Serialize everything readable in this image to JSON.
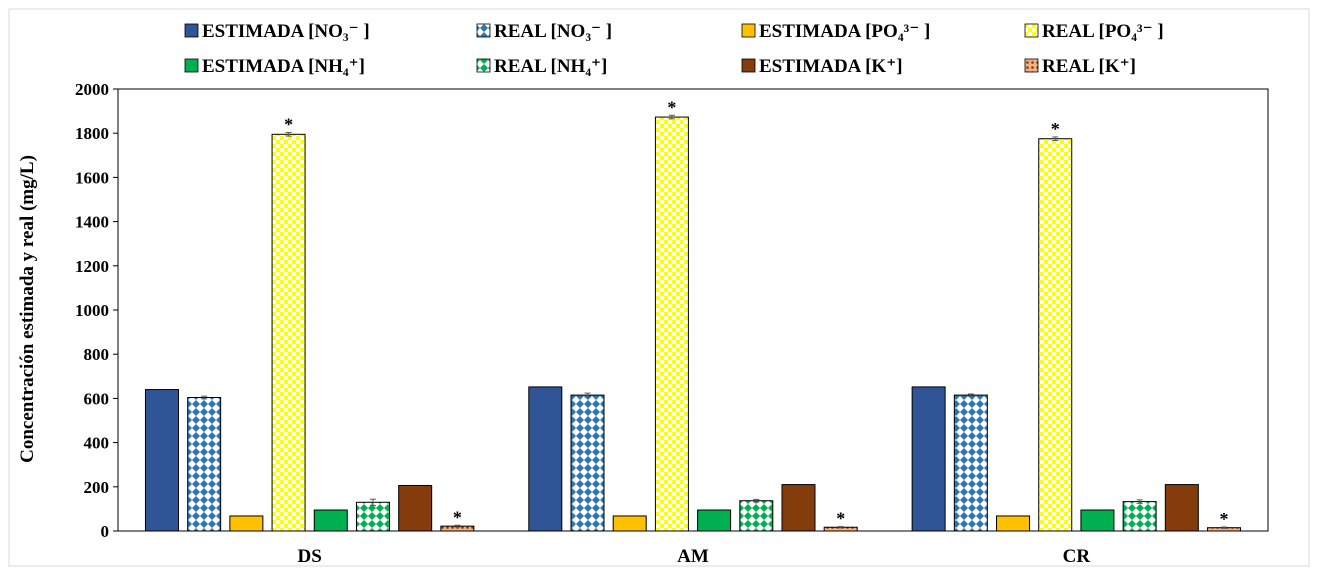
{
  "chart_data": {
    "type": "bar",
    "ylabel": "Concentración estimada y real (mg/L)",
    "ylim": [
      0,
      2000
    ],
    "yticks": [
      0,
      200,
      400,
      600,
      800,
      1000,
      1200,
      1400,
      1600,
      1800,
      2000
    ],
    "grid": false,
    "legend_position": "top",
    "categories": [
      "DS",
      "AM",
      "CR"
    ],
    "series": [
      {
        "name": "ESTIMADA  [NO₃⁻ ]",
        "values": [
          640,
          652,
          652
        ],
        "errors": [
          0,
          0,
          0
        ],
        "color": "#2f5597",
        "pattern": "solid",
        "stars": [
          false,
          false,
          false
        ]
      },
      {
        "name": "REAL [NO₃⁻ ]",
        "values": [
          604,
          615,
          615
        ],
        "errors": [
          6,
          9,
          5
        ],
        "color": "#2e75b6",
        "pattern": "diamond",
        "stars": [
          false,
          false,
          false
        ]
      },
      {
        "name": "ESTIMADA [PO₄³⁻ ]",
        "values": [
          68,
          68,
          68
        ],
        "errors": [
          0,
          0,
          0
        ],
        "color": "#ffc000",
        "pattern": "solid",
        "stars": [
          false,
          false,
          false
        ]
      },
      {
        "name": "REAL [PO₄³⁻ ]",
        "values": [
          1795,
          1873,
          1775
        ],
        "errors": [
          8,
          8,
          8
        ],
        "color": "#ffff00",
        "pattern": "check",
        "stars": [
          true,
          true,
          true
        ]
      },
      {
        "name": "ESTIMADA [NH₄⁺]",
        "values": [
          95,
          95,
          95
        ],
        "errors": [
          0,
          0,
          0
        ],
        "color": "#00b050",
        "pattern": "solid",
        "stars": [
          false,
          false,
          false
        ]
      },
      {
        "name": "REAL [NH₄⁺]",
        "values": [
          130,
          137,
          133
        ],
        "errors": [
          14,
          6,
          8
        ],
        "color": "#00b050",
        "pattern": "diamond",
        "stars": [
          false,
          false,
          false
        ]
      },
      {
        "name": "ESTIMADA [K⁺]",
        "values": [
          206,
          210,
          210
        ],
        "errors": [
          0,
          0,
          0
        ],
        "color": "#843c0c",
        "pattern": "solid",
        "stars": [
          false,
          false,
          false
        ]
      },
      {
        "name": "REAL [K⁺]",
        "values": [
          22,
          17,
          15
        ],
        "errors": [
          4,
          3,
          3
        ],
        "color": "#c55a11",
        "pattern": "dots",
        "stars": [
          true,
          true,
          true
        ]
      }
    ],
    "star_symbol": "*"
  }
}
